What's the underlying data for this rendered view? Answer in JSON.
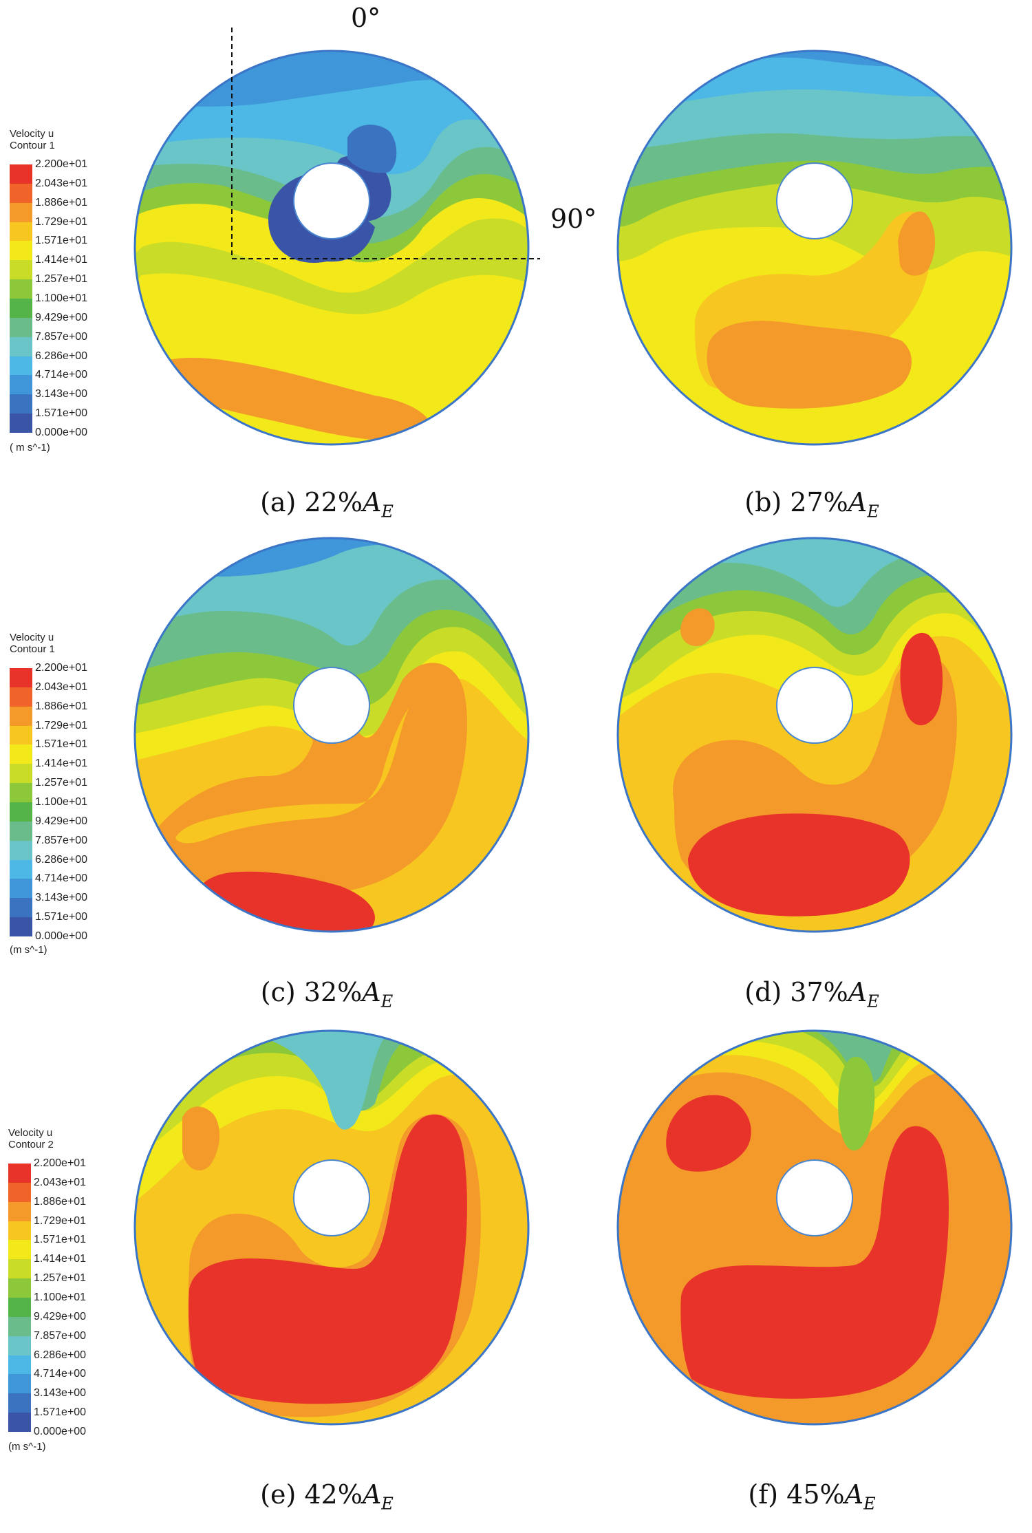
{
  "legends": [
    {
      "title_line1": "Velocity u",
      "title_line2": "Contour 1",
      "unit": "( m s^-1)"
    },
    {
      "title_line1": "Velocity u",
      "title_line2": "Contour 1",
      "unit": "(m s^-1)"
    },
    {
      "title_line1": "Velocity u",
      "title_line2": "Contour 2",
      "unit": "(m s^-1)"
    }
  ],
  "legend_ticks": [
    "2.200e+01",
    "2.043e+01",
    "1.886e+01",
    "1.729e+01",
    "1.571e+01",
    "1.414e+01",
    "1.257e+01",
    "1.100e+01",
    "9.429e+00",
    "7.857e+00",
    "6.286e+00",
    "4.714e+00",
    "3.143e+00",
    "1.571e+00",
    "0.000e+00"
  ],
  "colorscale": [
    "#e8332a",
    "#f0642a",
    "#f39a2a",
    "#f7c620",
    "#f2e81a",
    "#c8dc28",
    "#8cc83a",
    "#54b448",
    "#6abd8a",
    "#69c5c8",
    "#4db8e6",
    "#3f96d8",
    "#3b73c0",
    "#3a55a8"
  ],
  "annotations": {
    "angle_top": "0°",
    "angle_right": "90°"
  },
  "panels": [
    {
      "id": "a",
      "prefix": "(a) 22%",
      "var": "A",
      "sub": "E"
    },
    {
      "id": "b",
      "prefix": "(b) 27%",
      "var": "A",
      "sub": "E"
    },
    {
      "id": "c",
      "prefix": "(c) 32%",
      "var": "A",
      "sub": "E"
    },
    {
      "id": "d",
      "prefix": "(d) 37%",
      "var": "A",
      "sub": "E"
    },
    {
      "id": "e",
      "prefix": "(e) 42%",
      "var": "A",
      "sub": "E"
    },
    {
      "id": "f",
      "prefix": "(f) 45%",
      "var": "A",
      "sub": "E"
    }
  ]
}
